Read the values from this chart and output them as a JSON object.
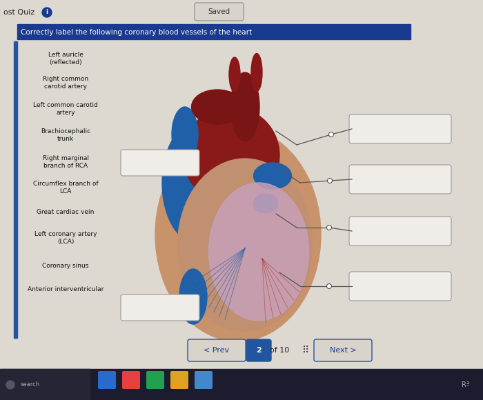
{
  "bg_color": "#ddd8d0",
  "title": "Correctly label the following coronary blood vessels of the heart",
  "title_bg": "#1a3a8f",
  "title_fg": "#ffffff",
  "left_labels": [
    "Left auricle\n(reflected)",
    "Right common\ncarotid artery",
    "Left common carotid\nartery",
    "Brachiocephalic\ntrunk",
    "Right marginal\nbranch of RCA",
    "Circumflex branch of\nLCA",
    "Great cardiac vein",
    "Left coronary artery\n(LCA)",
    "Coronary sinus",
    "Anterior interventricular"
  ],
  "header_text": "ost Quiz",
  "saved_text": "Saved",
  "nav_prev": "< Prev",
  "nav_page": "2",
  "nav_of": "of 10",
  "nav_next": "Next >",
  "line_color": "#555555",
  "box_edge_color": "#999999",
  "box_face_color": "#f0ede8"
}
